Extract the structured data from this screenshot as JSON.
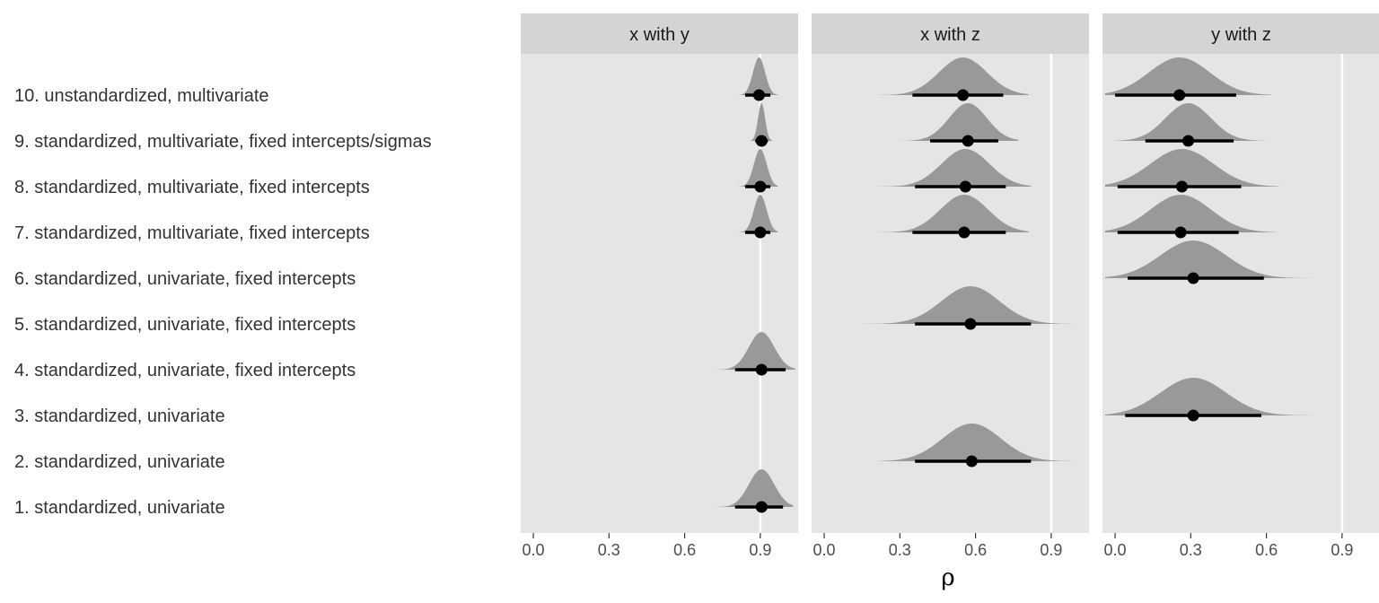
{
  "chart_data": {
    "type": "halfeye",
    "xlabel": "ρ",
    "ylabel": "",
    "xlim": [
      -0.05,
      1.05
    ],
    "x_ticks": [
      0.0,
      0.3,
      0.6,
      0.9
    ],
    "x_tick_labels": [
      "0.0",
      "0.3",
      "0.6",
      "0.9"
    ],
    "reference_line": 0.9,
    "grid": true,
    "legend": "none",
    "colors": {
      "panel_bg": "#e5e5e5",
      "strip_bg": "#d4d4d4",
      "density": "#999999",
      "point": "#000000",
      "ref_line": "#ffffff"
    },
    "rows": [
      "10. unstandardized, multivariate",
      "9. standardized, multivariate, fixed intercepts/sigmas",
      "8. standardized, multivariate, fixed intercepts",
      "7. standardized, multivariate, fixed intercepts",
      "6. standardized, univariate, fixed intercepts",
      "5. standardized, univariate, fixed intercepts",
      "4. standardized, univariate, fixed intercepts",
      "3. standardized, univariate",
      "2. standardized, univariate",
      "1. standardized, univariate"
    ],
    "panels": [
      {
        "title": "x with y",
        "estimates": [
          {
            "row": 0,
            "point": 0.895,
            "lower": 0.84,
            "upper": 0.94,
            "dist_min": 0.79,
            "dist_max": 0.97,
            "spread": 0.024
          },
          {
            "row": 1,
            "point": 0.905,
            "lower": 0.88,
            "upper": 0.93,
            "dist_min": 0.84,
            "dist_max": 0.95,
            "spread": 0.014
          },
          {
            "row": 2,
            "point": 0.9,
            "lower": 0.84,
            "upper": 0.94,
            "dist_min": 0.79,
            "dist_max": 0.97,
            "spread": 0.025
          },
          {
            "row": 3,
            "point": 0.9,
            "lower": 0.84,
            "upper": 0.94,
            "dist_min": 0.79,
            "dist_max": 0.97,
            "spread": 0.025
          },
          {
            "row": 6,
            "point": 0.905,
            "lower": 0.8,
            "upper": 1.0,
            "dist_min": 0.72,
            "dist_max": 1.04,
            "spread": 0.05
          },
          {
            "row": 9,
            "point": 0.905,
            "lower": 0.8,
            "upper": 0.99,
            "dist_min": 0.72,
            "dist_max": 1.03,
            "spread": 0.05
          }
        ]
      },
      {
        "title": "x with z",
        "estimates": [
          {
            "row": 0,
            "point": 0.55,
            "lower": 0.35,
            "upper": 0.71,
            "dist_min": 0.16,
            "dist_max": 0.81,
            "spread": 0.095
          },
          {
            "row": 1,
            "point": 0.57,
            "lower": 0.42,
            "upper": 0.69,
            "dist_min": 0.26,
            "dist_max": 0.77,
            "spread": 0.075
          },
          {
            "row": 2,
            "point": 0.56,
            "lower": 0.36,
            "upper": 0.72,
            "dist_min": 0.15,
            "dist_max": 0.82,
            "spread": 0.095
          },
          {
            "row": 3,
            "point": 0.555,
            "lower": 0.35,
            "upper": 0.72,
            "dist_min": 0.2,
            "dist_max": 0.81,
            "spread": 0.095
          },
          {
            "row": 5,
            "point": 0.58,
            "lower": 0.36,
            "upper": 0.82,
            "dist_min": 0.14,
            "dist_max": 0.98,
            "spread": 0.115
          },
          {
            "row": 8,
            "point": 0.585,
            "lower": 0.36,
            "upper": 0.82,
            "dist_min": 0.22,
            "dist_max": 0.98,
            "spread": 0.115
          }
        ]
      },
      {
        "title": "y with z",
        "estimates": [
          {
            "row": 0,
            "point": 0.255,
            "lower": 0.0,
            "upper": 0.48,
            "dist_min": -0.04,
            "dist_max": 0.62,
            "spread": 0.12
          },
          {
            "row": 1,
            "point": 0.29,
            "lower": 0.12,
            "upper": 0.47,
            "dist_min": 0.0,
            "dist_max": 0.6,
            "spread": 0.09
          },
          {
            "row": 2,
            "point": 0.265,
            "lower": 0.01,
            "upper": 0.5,
            "dist_min": -0.04,
            "dist_max": 0.65,
            "spread": 0.125
          },
          {
            "row": 3,
            "point": 0.26,
            "lower": 0.01,
            "upper": 0.49,
            "dist_min": -0.04,
            "dist_max": 0.64,
            "spread": 0.12
          },
          {
            "row": 4,
            "point": 0.31,
            "lower": 0.05,
            "upper": 0.59,
            "dist_min": -0.04,
            "dist_max": 0.79,
            "spread": 0.13
          },
          {
            "row": 7,
            "point": 0.31,
            "lower": 0.04,
            "upper": 0.58,
            "dist_min": -0.04,
            "dist_max": 0.91,
            "spread": 0.13
          }
        ]
      }
    ]
  }
}
